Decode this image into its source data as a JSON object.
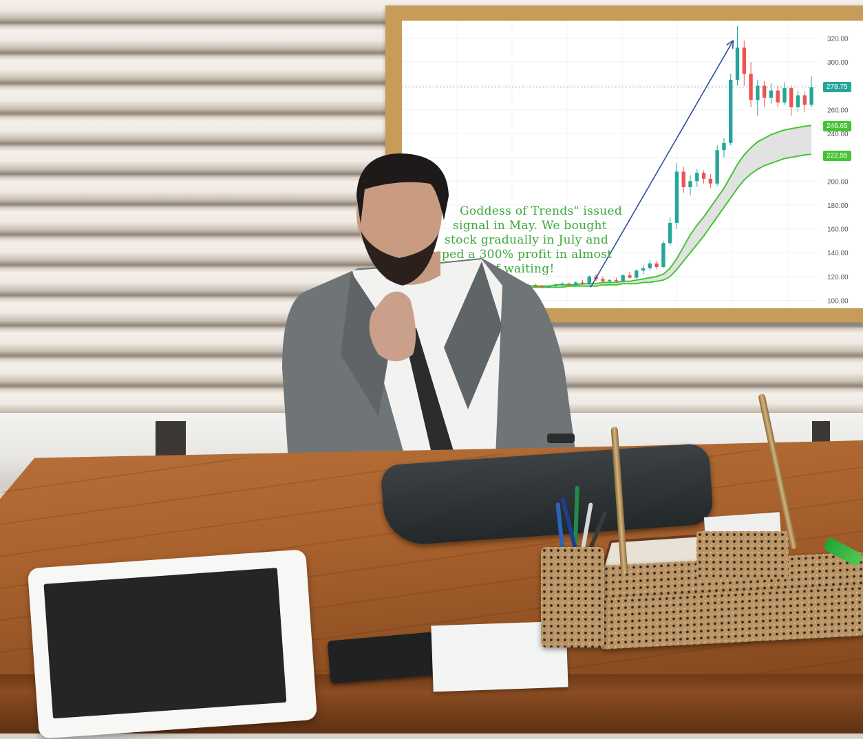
{
  "scene": {
    "description_colors": {
      "chart_up_candle": "#26a69a",
      "chart_down_candle": "#ef5350",
      "moving_average": "#44c434",
      "arrow": "#2f4f9e",
      "overlay_text": "#3aa93a",
      "frame_wood": "#c79b58"
    }
  },
  "chart_overlay": {
    "caption_lines": [
      "Goddess of Trends\" issued",
      "signal in May. We bought",
      "stock gradually in July and",
      "ped a 300% profit in almost",
      "months of waiting!"
    ],
    "last_price_tag": "278.75",
    "ma_tag_upper": "246.65",
    "ma_tag_lower": "222.55"
  },
  "chart_data": {
    "type": "candlestick",
    "y_ticks": [
      "320.00",
      "300.00",
      "280.00",
      "260.00",
      "240.00",
      "220.00",
      "200.00",
      "180.00",
      "160.00",
      "140.00",
      "120.00",
      "100.00"
    ],
    "ylim": [
      98,
      330
    ],
    "grid": true,
    "candles": [
      {
        "o": 112,
        "h": 113,
        "l": 111,
        "c": 112
      },
      {
        "o": 112,
        "h": 113,
        "l": 111,
        "c": 111
      },
      {
        "o": 111,
        "h": 113,
        "l": 110,
        "c": 112
      },
      {
        "o": 112,
        "h": 114,
        "l": 111,
        "c": 113
      },
      {
        "o": 113,
        "h": 114,
        "l": 111,
        "c": 112
      },
      {
        "o": 112,
        "h": 113,
        "l": 110,
        "c": 111
      },
      {
        "o": 111,
        "h": 112,
        "l": 110,
        "c": 112
      },
      {
        "o": 112,
        "h": 114,
        "l": 111,
        "c": 113
      },
      {
        "o": 113,
        "h": 115,
        "l": 112,
        "c": 114
      },
      {
        "o": 114,
        "h": 115,
        "l": 112,
        "c": 113
      },
      {
        "o": 113,
        "h": 116,
        "l": 112,
        "c": 115
      },
      {
        "o": 115,
        "h": 117,
        "l": 113,
        "c": 114
      },
      {
        "o": 114,
        "h": 121,
        "l": 113,
        "c": 120
      },
      {
        "o": 120,
        "h": 122,
        "l": 116,
        "c": 118
      },
      {
        "o": 118,
        "h": 120,
        "l": 115,
        "c": 116
      },
      {
        "o": 116,
        "h": 118,
        "l": 114,
        "c": 117
      },
      {
        "o": 117,
        "h": 119,
        "l": 115,
        "c": 116
      },
      {
        "o": 116,
        "h": 122,
        "l": 115,
        "c": 121
      },
      {
        "o": 121,
        "h": 124,
        "l": 118,
        "c": 119
      },
      {
        "o": 119,
        "h": 126,
        "l": 118,
        "c": 125
      },
      {
        "o": 125,
        "h": 130,
        "l": 122,
        "c": 127
      },
      {
        "o": 127,
        "h": 134,
        "l": 125,
        "c": 131
      },
      {
        "o": 131,
        "h": 133,
        "l": 126,
        "c": 128
      },
      {
        "o": 128,
        "h": 150,
        "l": 127,
        "c": 148
      },
      {
        "o": 148,
        "h": 170,
        "l": 146,
        "c": 165
      },
      {
        "o": 165,
        "h": 215,
        "l": 160,
        "c": 208
      },
      {
        "o": 208,
        "h": 212,
        "l": 190,
        "c": 195
      },
      {
        "o": 195,
        "h": 205,
        "l": 188,
        "c": 200
      },
      {
        "o": 200,
        "h": 210,
        "l": 195,
        "c": 207
      },
      {
        "o": 207,
        "h": 209,
        "l": 198,
        "c": 202
      },
      {
        "o": 202,
        "h": 206,
        "l": 194,
        "c": 198
      },
      {
        "o": 198,
        "h": 230,
        "l": 196,
        "c": 226
      },
      {
        "o": 226,
        "h": 236,
        "l": 220,
        "c": 232
      },
      {
        "o": 232,
        "h": 290,
        "l": 230,
        "c": 285
      },
      {
        "o": 285,
        "h": 330,
        "l": 280,
        "c": 312
      },
      {
        "o": 312,
        "h": 318,
        "l": 280,
        "c": 290
      },
      {
        "o": 290,
        "h": 300,
        "l": 262,
        "c": 268
      },
      {
        "o": 268,
        "h": 285,
        "l": 255,
        "c": 280
      },
      {
        "o": 280,
        "h": 284,
        "l": 262,
        "c": 270
      },
      {
        "o": 270,
        "h": 282,
        "l": 265,
        "c": 276
      },
      {
        "o": 276,
        "h": 280,
        "l": 262,
        "c": 266
      },
      {
        "o": 266,
        "h": 283,
        "l": 264,
        "c": 278
      },
      {
        "o": 278,
        "h": 280,
        "l": 255,
        "c": 262
      },
      {
        "o": 262,
        "h": 276,
        "l": 258,
        "c": 272
      },
      {
        "o": 272,
        "h": 275,
        "l": 258,
        "c": 264
      },
      {
        "o": 264,
        "h": 288,
        "l": 262,
        "c": 278.75
      }
    ],
    "ma_upper": [
      112,
      112,
      112,
      112,
      112,
      112,
      112,
      113,
      113,
      113,
      113,
      114,
      114,
      114,
      115,
      115,
      115,
      116,
      116,
      117,
      118,
      119,
      120,
      122,
      127,
      135,
      145,
      155,
      163,
      170,
      178,
      186,
      194,
      204,
      214,
      222,
      228,
      233,
      236,
      239,
      241,
      243,
      244,
      245,
      246,
      246.65
    ],
    "ma_lower": [
      111,
      111,
      111,
      111,
      111,
      111,
      111,
      111,
      111,
      112,
      112,
      112,
      112,
      112,
      113,
      113,
      113,
      114,
      114,
      114,
      115,
      115,
      116,
      117,
      120,
      126,
      133,
      140,
      147,
      154,
      162,
      170,
      178,
      186,
      194,
      201,
      206,
      210,
      213,
      215,
      217,
      219,
      220,
      221,
      222,
      222.55
    ]
  }
}
